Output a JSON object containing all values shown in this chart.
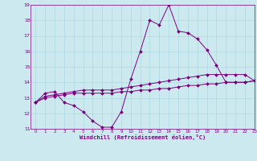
{
  "xlabel": "Windchill (Refroidissement éolien,°C)",
  "background_color": "#cce9f0",
  "line_color": "#7b0080",
  "x_data": [
    0,
    1,
    2,
    3,
    4,
    5,
    6,
    7,
    8,
    9,
    10,
    11,
    12,
    13,
    14,
    15,
    16,
    17,
    18,
    19,
    20,
    21,
    22,
    23
  ],
  "line1": [
    12.7,
    13.3,
    13.4,
    12.7,
    12.5,
    12.1,
    11.5,
    11.1,
    11.1,
    12.1,
    14.2,
    16.0,
    18.0,
    17.7,
    19.0,
    17.3,
    17.2,
    16.8,
    16.1,
    15.1,
    14.0,
    14.0,
    14.0,
    14.1
  ],
  "line2": [
    12.7,
    13.1,
    13.2,
    13.3,
    13.4,
    13.5,
    13.5,
    13.5,
    13.5,
    13.6,
    13.7,
    13.8,
    13.9,
    14.0,
    14.1,
    14.2,
    14.3,
    14.4,
    14.5,
    14.5,
    14.5,
    14.5,
    14.5,
    14.1
  ],
  "line3": [
    12.7,
    13.0,
    13.1,
    13.2,
    13.3,
    13.3,
    13.3,
    13.3,
    13.3,
    13.4,
    13.4,
    13.5,
    13.5,
    13.6,
    13.6,
    13.7,
    13.8,
    13.8,
    13.9,
    13.9,
    14.0,
    14.0,
    14.0,
    14.1
  ],
  "ylim": [
    11,
    19
  ],
  "xlim": [
    -0.5,
    23
  ],
  "yticks": [
    11,
    12,
    13,
    14,
    15,
    16,
    17,
    18,
    19
  ],
  "xticks": [
    0,
    1,
    2,
    3,
    4,
    5,
    6,
    7,
    8,
    9,
    10,
    11,
    12,
    13,
    14,
    15,
    16,
    17,
    18,
    19,
    20,
    21,
    22,
    23
  ],
  "grid_color": "#a8d4dd",
  "marker": "D",
  "markersize": 2.0,
  "linewidth": 0.7
}
